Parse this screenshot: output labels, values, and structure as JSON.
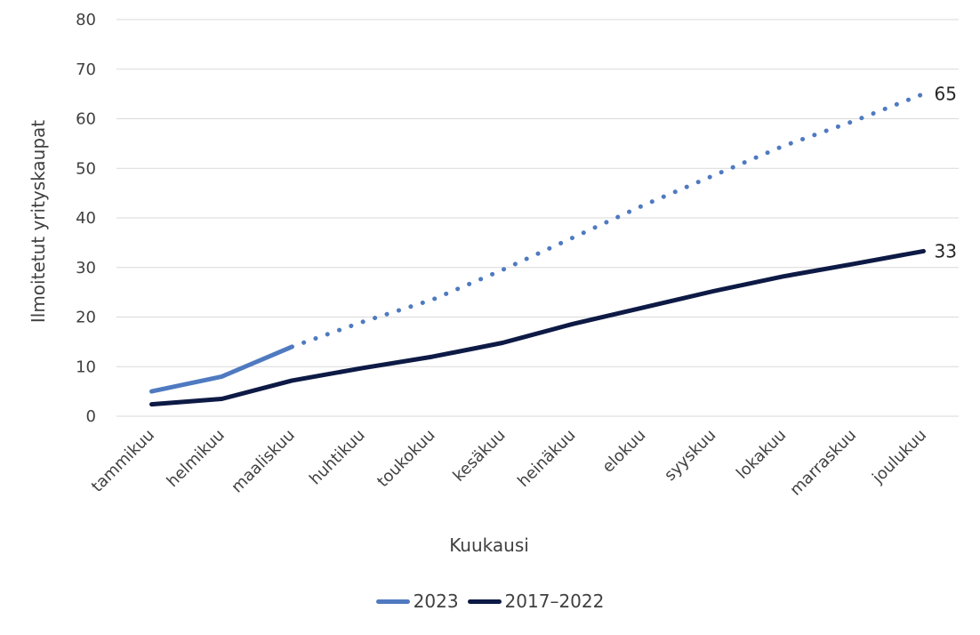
{
  "chart_data": {
    "type": "line",
    "ylabel": "Ilmoitetut yrityskaupat",
    "xlabel": "Kuukausi",
    "ylim": [
      0,
      80
    ],
    "yticks": [
      "0",
      "10",
      "20",
      "30",
      "40",
      "50",
      "60",
      "70",
      "80"
    ],
    "categories": [
      "tammikuu",
      "helmikuu",
      "maaliskuu",
      "huhtikuu",
      "toukokuu",
      "kesäkuu",
      "heinäkuu",
      "elokuu",
      "syyskuu",
      "lokakuu",
      "marraskuu",
      "joulukuu"
    ],
    "grid": true,
    "legend_position": "bottom",
    "series": [
      {
        "name": "2023",
        "color": "#4f7ac0",
        "values": [
          5,
          8,
          14,
          null,
          null,
          null,
          null,
          null,
          null,
          null,
          null,
          null
        ],
        "projection": {
          "style": "dotted",
          "values": [
            null,
            null,
            14,
            19,
            23.5,
            29.5,
            36,
            42.5,
            48.5,
            54.5,
            59.5,
            65
          ]
        },
        "end_label": "65"
      },
      {
        "name": "2017–2022",
        "color": "#0d1a45",
        "values": [
          2.4,
          3.5,
          7.2,
          9.7,
          12,
          14.8,
          18.6,
          21.9,
          25.2,
          28.2,
          30.7,
          33.3
        ],
        "end_label": "33"
      }
    ]
  }
}
